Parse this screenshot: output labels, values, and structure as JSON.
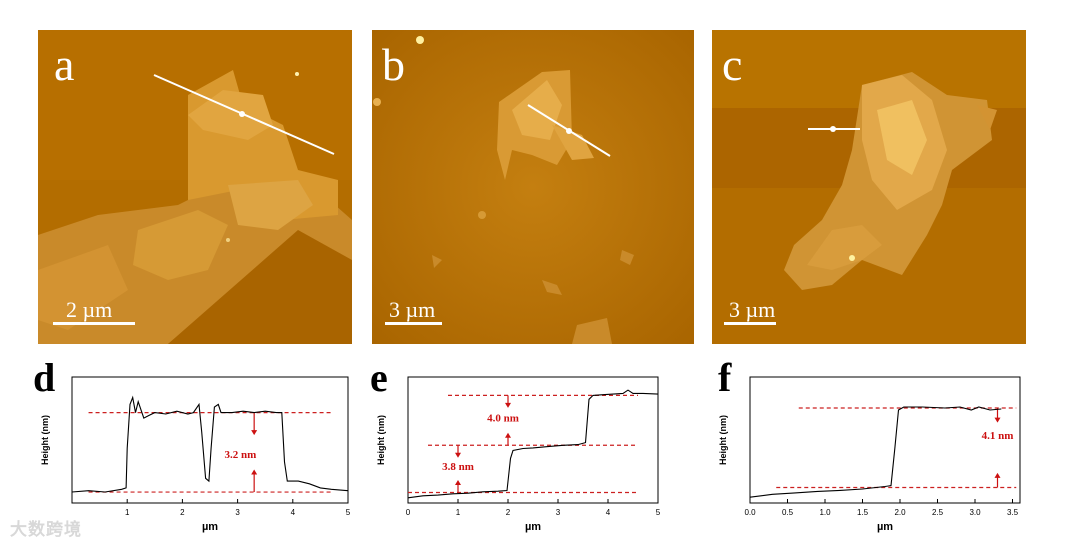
{
  "figure": {
    "panels": [
      {
        "id": "a",
        "letter": "a",
        "scale": "2 µm"
      },
      {
        "id": "b",
        "letter": "b",
        "scale": "3 µm"
      },
      {
        "id": "c",
        "letter": "c",
        "scale": "3 µm"
      }
    ],
    "colors": {
      "afm_base": "#b36d00",
      "afm_flake": "#e0a23c",
      "dashed": "#cc2020",
      "annot": "#cc1111"
    }
  },
  "watermark": "大数跨境",
  "chart_data": [
    {
      "type": "line",
      "panel": "d",
      "letter": "d",
      "xlabel": "µm",
      "ylabel": "Height (nm)",
      "xlim": [
        0,
        5
      ],
      "xticks": [
        "1",
        "2",
        "3",
        "4",
        "5"
      ],
      "annotations": [
        {
          "text": "3.2 nm"
        }
      ],
      "series": [
        {
          "x": [
            0,
            0.3,
            0.6,
            0.9,
            0.98,
            1.0,
            1.05,
            1.1,
            1.15,
            1.2,
            1.3,
            1.4,
            1.5,
            1.7,
            1.9,
            2.1,
            2.2,
            2.3,
            2.35,
            2.42,
            2.48,
            2.52,
            2.58,
            2.65,
            2.7,
            2.9,
            3.1,
            3.3,
            3.5,
            3.7,
            3.8,
            3.85,
            3.9,
            4.1,
            4.3,
            4.5,
            4.7,
            5.0
          ],
          "y": [
            0.4,
            0.45,
            0.4,
            0.5,
            0.55,
            2.0,
            3.6,
            3.85,
            3.3,
            3.7,
            3.1,
            3.2,
            3.3,
            3.25,
            3.35,
            3.25,
            3.3,
            3.6,
            2.6,
            0.9,
            0.8,
            2.0,
            3.5,
            3.6,
            3.3,
            3.3,
            3.35,
            3.3,
            3.35,
            3.3,
            3.3,
            1.5,
            0.8,
            0.8,
            0.7,
            0.55,
            0.5,
            0.45
          ]
        }
      ]
    },
    {
      "type": "line",
      "panel": "e",
      "letter": "e",
      "xlabel": "µm",
      "ylabel": "Height (nm)",
      "xlim": [
        0,
        5
      ],
      "xticks": [
        "0",
        "1",
        "2",
        "3",
        "4",
        "5"
      ],
      "annotations": [
        {
          "text": "4.0 nm"
        },
        {
          "text": "3.8 nm"
        }
      ],
      "series": [
        {
          "x": [
            0,
            0.3,
            0.6,
            0.9,
            1.2,
            1.5,
            1.8,
            1.98,
            2.05,
            2.1,
            2.3,
            2.5,
            2.8,
            3.1,
            3.4,
            3.55,
            3.62,
            3.7,
            3.9,
            4.1,
            4.3,
            4.4,
            4.5,
            4.7,
            5.0
          ],
          "y": [
            0.0,
            0.15,
            0.2,
            0.3,
            0.35,
            0.45,
            0.5,
            0.55,
            3.0,
            3.6,
            3.75,
            3.8,
            3.9,
            4.0,
            4.05,
            4.2,
            7.5,
            7.8,
            7.85,
            7.9,
            7.95,
            8.2,
            7.95,
            7.95,
            7.9
          ]
        }
      ]
    },
    {
      "type": "line",
      "panel": "f",
      "letter": "f",
      "xlabel": "µm",
      "ylabel": "Height (nm)",
      "xlim": [
        0,
        3.6
      ],
      "xticks": [
        "0.0",
        "0.5",
        "1.0",
        "1.5",
        "2.0",
        "2.5",
        "3.0",
        "3.5"
      ],
      "annotations": [
        {
          "text": "4.1 nm"
        }
      ],
      "series": [
        {
          "x": [
            0.0,
            0.3,
            0.6,
            0.9,
            1.2,
            1.5,
            1.8,
            1.88,
            1.93,
            1.98,
            2.05,
            2.3,
            2.6,
            2.8,
            2.95,
            3.05,
            3.2,
            3.35
          ],
          "y": [
            0.0,
            0.15,
            0.22,
            0.3,
            0.35,
            0.42,
            0.55,
            0.6,
            2.5,
            4.5,
            4.65,
            4.65,
            4.6,
            4.65,
            4.5,
            4.65,
            4.5,
            4.55
          ]
        }
      ]
    }
  ]
}
